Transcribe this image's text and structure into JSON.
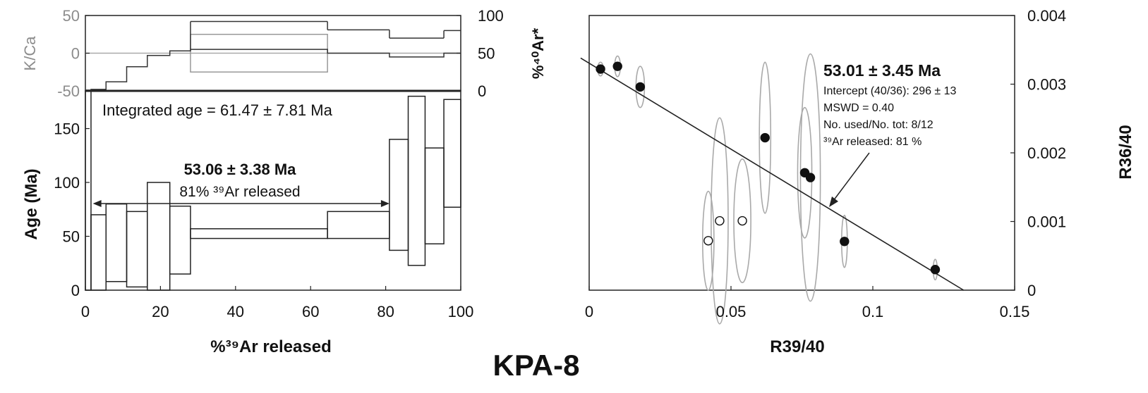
{
  "sample_label": "KPA-8",
  "chart_data": [
    {
      "type": "step",
      "panel": "age-spectrum",
      "xlabel": "%³⁹Ar released",
      "x_ticks": [
        "0",
        "20",
        "40",
        "60",
        "80",
        "100"
      ],
      "xlim": [
        0,
        100
      ],
      "top": {
        "left_axis_label": "K/Ca",
        "left_ticks": [
          "50",
          "0",
          "-50"
        ],
        "left_ylim": [
          -50,
          50
        ],
        "right_axis_label": "%⁴⁰Ar*",
        "right_ticks": [
          "100",
          "50",
          "0"
        ],
        "right_ylim": [
          0,
          100
        ],
        "kca_steps": [
          {
            "x0": 0,
            "x1": 1.5,
            "y": -49
          },
          {
            "x0": 1.5,
            "x1": 5.5,
            "y": -48
          },
          {
            "x0": 5.5,
            "x1": 11,
            "y": -38
          },
          {
            "x0": 11,
            "x1": 16.5,
            "y": -18
          },
          {
            "x0": 16.5,
            "x1": 22.5,
            "y": -3
          },
          {
            "x0": 22.5,
            "x1": 28,
            "y": 3
          },
          {
            "x0": 28,
            "x1": 64.5,
            "y": 5
          },
          {
            "x0": 64.5,
            "x1": 81,
            "y": 0
          },
          {
            "x0": 81,
            "x1": 86,
            "y": -5
          },
          {
            "x0": 86,
            "x1": 95.5,
            "y": -5
          },
          {
            "x0": 95.5,
            "x1": 100,
            "y": 0
          }
        ],
        "ar40_steps": [
          {
            "x0": 28,
            "x1": 64.5,
            "y": 92
          },
          {
            "x0": 64.5,
            "x1": 81,
            "y": 81
          },
          {
            "x0": 81,
            "x1": 95.5,
            "y": 70
          },
          {
            "x0": 95.5,
            "x1": 100,
            "y": 80
          }
        ],
        "kca_box": {
          "x0": 28,
          "x1": 64.5,
          "y_top": 25,
          "y_bottom": -25
        }
      },
      "bottom": {
        "ylabel": "Age (Ma)",
        "y_ticks": [
          "0",
          "50",
          "100",
          "150"
        ],
        "ylim": [
          0,
          185
        ],
        "integrated_age_label": "Integrated age = 61.47 ± 7.81 Ma",
        "plateau_age_label": "53.06 ± 3.38 Ma",
        "plateau_release_label": "81% ³⁹Ar released",
        "plateau_range": [
          2,
          81
        ],
        "steps": [
          {
            "x0": 0,
            "x1": 1.5,
            "lo": 0,
            "hi": 185
          },
          {
            "x0": 1.5,
            "x1": 5.5,
            "lo": 0,
            "hi": 70
          },
          {
            "x0": 5.5,
            "x1": 11,
            "lo": 8,
            "hi": 80
          },
          {
            "x0": 11,
            "x1": 16.5,
            "lo": 3,
            "hi": 73
          },
          {
            "x0": 16.5,
            "x1": 22.5,
            "lo": 0,
            "hi": 100
          },
          {
            "x0": 22.5,
            "x1": 28,
            "lo": 15,
            "hi": 78
          },
          {
            "x0": 28,
            "x1": 64.5,
            "lo": 48,
            "hi": 57
          },
          {
            "x0": 64.5,
            "x1": 81,
            "lo": 48,
            "hi": 73
          },
          {
            "x0": 81,
            "x1": 86,
            "lo": 37,
            "hi": 140
          },
          {
            "x0": 86,
            "x1": 90.5,
            "lo": 23,
            "hi": 180
          },
          {
            "x0": 90.5,
            "x1": 95.5,
            "lo": 43,
            "hi": 132
          },
          {
            "x0": 95.5,
            "x1": 100,
            "lo": 77,
            "hi": 177
          }
        ]
      }
    },
    {
      "type": "scatter",
      "panel": "inverse-isochron",
      "xlabel": "R39/40",
      "ylabel": "R36/40",
      "x_ticks": [
        "0",
        "0.05",
        "0.1",
        "0.15"
      ],
      "y_ticks": [
        "0",
        "0.001",
        "0.002",
        "0.003",
        "0.004"
      ],
      "xlim": [
        0,
        0.15
      ],
      "ylim": [
        0,
        0.004
      ],
      "age_label": "53.01 ± 3.45 Ma",
      "intercept_label": "Intercept (40/36): 296 ± 13",
      "mswd_label": "MSWD = 0.40",
      "used_label": "No. used/No. tot: 8/12",
      "released_label": "³⁹Ar released: 81 %",
      "isochron_line": [
        [
          -0.003,
          0.00338
        ],
        [
          0.132,
          0
        ]
      ],
      "points": [
        {
          "x": 0.004,
          "y": 0.00322,
          "used": true,
          "ex": 0.001,
          "ey": 0.0001
        },
        {
          "x": 0.01,
          "y": 0.00326,
          "used": true,
          "ex": 0.001,
          "ey": 0.00015
        },
        {
          "x": 0.018,
          "y": 0.00296,
          "used": true,
          "ex": 0.0015,
          "ey": 0.0003
        },
        {
          "x": 0.042,
          "y": 0.00072,
          "used": false,
          "ex": 0.002,
          "ey": 0.00072
        },
        {
          "x": 0.046,
          "y": 0.00101,
          "used": false,
          "ex": 0.003,
          "ey": 0.0015
        },
        {
          "x": 0.054,
          "y": 0.00101,
          "used": false,
          "ex": 0.003,
          "ey": 0.0009
        },
        {
          "x": 0.062,
          "y": 0.00222,
          "used": true,
          "ex": 0.002,
          "ey": 0.0011
        },
        {
          "x": 0.076,
          "y": 0.00171,
          "used": true,
          "ex": 0.0025,
          "ey": 0.00095
        },
        {
          "x": 0.078,
          "y": 0.00164,
          "used": true,
          "ex": 0.0035,
          "ey": 0.0018
        },
        {
          "x": 0.09,
          "y": 0.00071,
          "used": true,
          "ex": 0.001,
          "ey": 0.00038
        },
        {
          "x": 0.122,
          "y": 0.0003,
          "used": true,
          "ex": 0.0007,
          "ey": 0.00015
        }
      ]
    }
  ]
}
